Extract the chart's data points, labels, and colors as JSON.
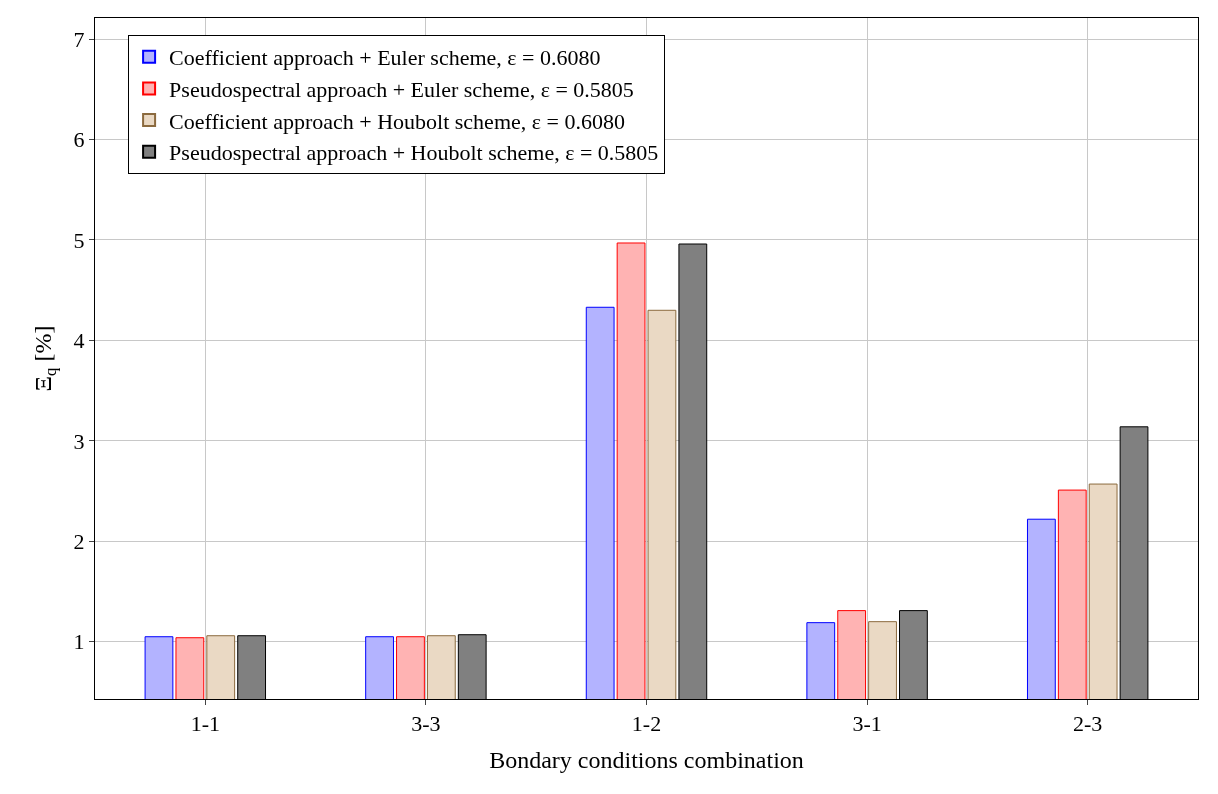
{
  "chart_data": {
    "type": "bar",
    "xlabel": "Bondary conditions combination",
    "ylabel": "Ξ$_{q}$ [%]",
    "categories": [
      "1-1",
      "3-3",
      "1-2",
      "3-1",
      "2-3"
    ],
    "series": [
      {
        "name": "Coefficient approach + Euler scheme, ε = 0.6080",
        "color": "#b3b3ff",
        "values": [
          1.05,
          1.05,
          4.33,
          1.19,
          2.22
        ]
      },
      {
        "name": "Pseudospectral approach + Euler scheme, ε = 0.5805",
        "color": "#ffb3b3",
        "values": [
          1.04,
          1.05,
          4.97,
          1.31,
          2.51
        ]
      },
      {
        "name": "Coefficient approach + Houbolt scheme, ε = 0.6080",
        "color": "#ead9c4",
        "values": [
          1.06,
          1.06,
          4.3,
          1.2,
          2.57
        ]
      },
      {
        "name": "Pseudospectral approach + Houbolt scheme, ε = 0.5805",
        "color": "#808080",
        "values": [
          1.06,
          1.07,
          4.96,
          1.31,
          3.14
        ]
      }
    ],
    "ylim": [
      0.43,
      7.21
    ],
    "yticks": [
      1,
      2,
      3,
      4,
      5,
      6,
      7
    ],
    "grid": true,
    "legend": "top left"
  }
}
